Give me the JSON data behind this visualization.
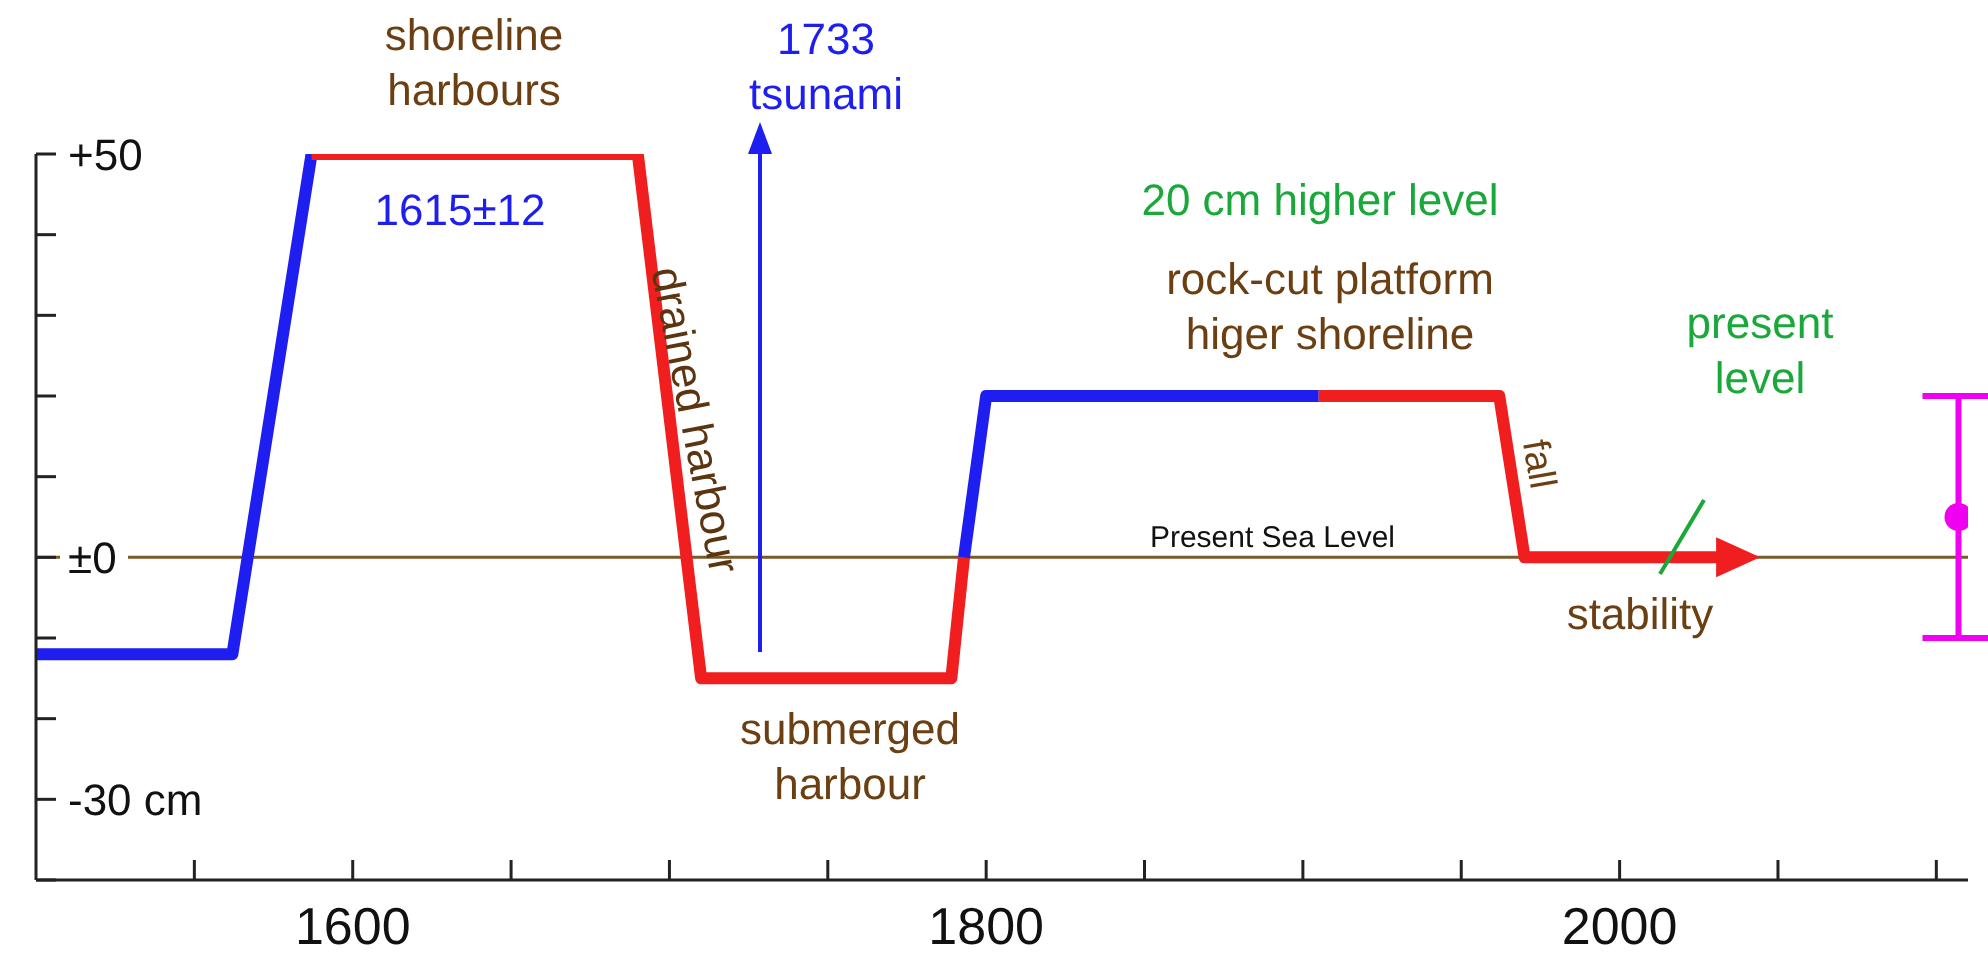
{
  "chart_data": {
    "type": "line",
    "xlim": [
      1500,
      2110
    ],
    "ylim": [
      -40,
      50
    ],
    "xticks": [
      {
        "value": 1550,
        "label": null
      },
      {
        "value": 1600,
        "label": "1600"
      },
      {
        "value": 1650,
        "label": null
      },
      {
        "value": 1700,
        "label": null
      },
      {
        "value": 1750,
        "label": null
      },
      {
        "value": 1800,
        "label": "1800"
      },
      {
        "value": 1850,
        "label": null
      },
      {
        "value": 1900,
        "label": null
      },
      {
        "value": 1950,
        "label": null
      },
      {
        "value": 2000,
        "label": "2000"
      },
      {
        "value": 2050,
        "label": null
      },
      {
        "value": 2100,
        "label": null
      }
    ],
    "yticks": [
      {
        "value": -40,
        "label": null
      },
      {
        "value": -30,
        "label": "-30 cm"
      },
      {
        "value": -20,
        "label": null
      },
      {
        "value": -10,
        "label": null
      },
      {
        "value": 0,
        "label": "±0"
      },
      {
        "value": 10,
        "label": null
      },
      {
        "value": 20,
        "label": null
      },
      {
        "value": 30,
        "label": null
      },
      {
        "value": 40,
        "label": null
      },
      {
        "value": 50,
        "label": "+50"
      }
    ],
    "series": [
      {
        "color": "#1e1ef0",
        "x": [
          1500,
          1562,
          1587
        ],
        "values": [
          -12,
          -12,
          50
        ]
      },
      {
        "color": "#f01e1e",
        "x": [
          1587,
          1690,
          1710,
          1789,
          1793
        ],
        "values": [
          50,
          50,
          -15,
          -15,
          0
        ]
      },
      {
        "color": "#1e1ef0",
        "x": [
          1793,
          1800,
          1905
        ],
        "values": [
          0,
          20,
          20
        ]
      },
      {
        "color": "#f01e1e",
        "x": [
          1905,
          1962,
          1970,
          2033
        ],
        "values": [
          20,
          20,
          0,
          0
        ]
      },
      {
        "type": "scatter",
        "color": "#f000f0",
        "x": [
          2107
        ],
        "values": [
          5
        ],
        "errors": [
          [
            -10,
            20
          ]
        ]
      }
    ],
    "ref_lines": [
      {
        "axis": "y",
        "value": 0,
        "label": "Present Sea Level",
        "color": "#7b5a2a"
      }
    ],
    "annotations": [
      "shoreline\nharbours",
      "1615±12",
      "drained harbour",
      "1733\ntsunami",
      "submerged\nharbour",
      "20 cm higher level",
      "rock-cut platform\nhiger shoreline",
      "fall",
      "present\nlevel",
      "stability"
    ]
  }
}
